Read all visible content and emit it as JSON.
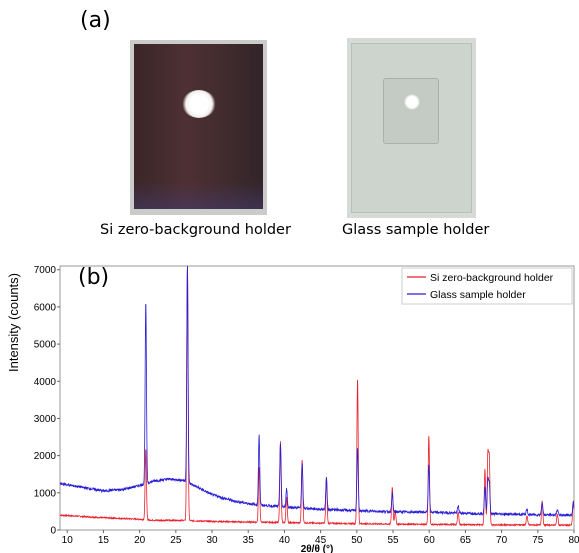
{
  "panel_a": {
    "label": "(a)",
    "captions": {
      "si": "Si zero-background holder",
      "glass": "Glass sample holder"
    }
  },
  "panel_b": {
    "label": "(b)"
  },
  "colors": {
    "red": "#e8202a",
    "blue": "#2a1fd6"
  },
  "chart_data": {
    "type": "line",
    "title": "",
    "xlabel": "2θ/θ (°)",
    "ylabel": "Intensity (counts)",
    "xlim": [
      9,
      80
    ],
    "ylim": [
      0,
      7100
    ],
    "xticks": [
      10,
      15,
      20,
      25,
      30,
      35,
      40,
      45,
      50,
      55,
      60,
      65,
      70,
      75,
      80
    ],
    "yticks": [
      0,
      1000,
      2000,
      3000,
      4000,
      5000,
      6000,
      7000
    ],
    "grid": false,
    "legend_position": "top-right",
    "series": [
      {
        "name": "Si zero-background holder",
        "color": "#e8202a",
        "baseline": [
          [
            9,
            400
          ],
          [
            15,
            330
          ],
          [
            20,
            290
          ],
          [
            22,
            260
          ],
          [
            26,
            260
          ],
          [
            30,
            230
          ],
          [
            40,
            200
          ],
          [
            50,
            170
          ],
          [
            60,
            150
          ],
          [
            70,
            140
          ],
          [
            80,
            130
          ]
        ],
        "peaks": [
          [
            20.85,
            1900
          ],
          [
            26.6,
            7100
          ],
          [
            36.5,
            1500
          ],
          [
            39.45,
            2200
          ],
          [
            40.3,
            700
          ],
          [
            42.45,
            1700
          ],
          [
            45.8,
            1250
          ],
          [
            50.1,
            3900
          ],
          [
            54.9,
            1000
          ],
          [
            55.3,
            350
          ],
          [
            59.95,
            2400
          ],
          [
            64.0,
            350
          ],
          [
            67.7,
            1500
          ],
          [
            68.1,
            1850
          ],
          [
            68.3,
            1750
          ],
          [
            73.5,
            250
          ],
          [
            75.6,
            650
          ],
          [
            77.7,
            300
          ],
          [
            79.9,
            650
          ]
        ]
      },
      {
        "name": "Glass sample holder",
        "color": "#2a1fd6",
        "baseline": [
          [
            9,
            1250
          ],
          [
            12,
            1150
          ],
          [
            15,
            1050
          ],
          [
            18,
            1100
          ],
          [
            20,
            1200
          ],
          [
            22,
            1320
          ],
          [
            24,
            1370
          ],
          [
            26,
            1340
          ],
          [
            28,
            1150
          ],
          [
            30,
            950
          ],
          [
            33,
            780
          ],
          [
            36,
            680
          ],
          [
            40,
            620
          ],
          [
            45,
            560
          ],
          [
            50,
            520
          ],
          [
            55,
            490
          ],
          [
            60,
            480
          ],
          [
            65,
            450
          ],
          [
            70,
            430
          ],
          [
            75,
            410
          ],
          [
            80,
            400
          ]
        ],
        "peaks": [
          [
            20.85,
            4900
          ],
          [
            26.6,
            5800
          ],
          [
            36.5,
            1900
          ],
          [
            39.45,
            1700
          ],
          [
            40.3,
            500
          ],
          [
            42.45,
            1200
          ],
          [
            45.8,
            850
          ],
          [
            50.1,
            1700
          ],
          [
            54.9,
            500
          ],
          [
            59.95,
            1300
          ],
          [
            64.0,
            200
          ],
          [
            67.7,
            700
          ],
          [
            68.1,
            900
          ],
          [
            68.3,
            800
          ],
          [
            73.5,
            150
          ],
          [
            75.6,
            350
          ],
          [
            77.7,
            150
          ],
          [
            79.9,
            350
          ]
        ]
      }
    ]
  }
}
